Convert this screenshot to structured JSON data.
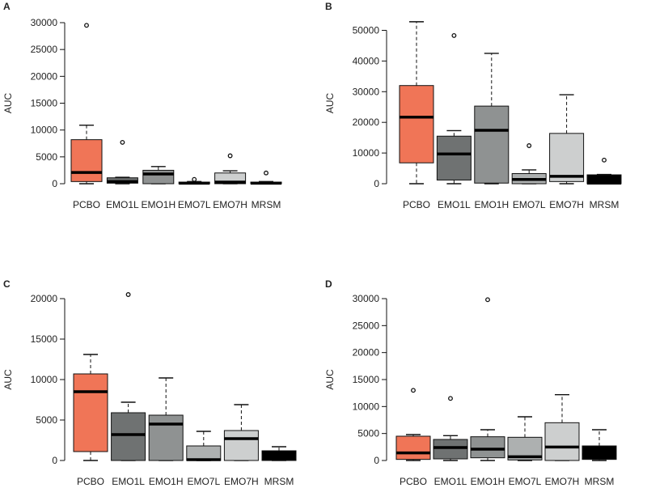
{
  "chart_data": [
    {
      "type": "box",
      "panel": "A",
      "ylabel": "AUC",
      "ylim": [
        0,
        30000
      ],
      "yticks": [
        0,
        5000,
        10000,
        15000,
        20000,
        25000,
        30000
      ],
      "categories": [
        "PCBO",
        "EMO1L",
        "EMO1H",
        "EMO7L",
        "EMO7H",
        "MRSM"
      ],
      "boxes": [
        {
          "whisker_low": 0,
          "q1": 400,
          "median": 2100,
          "q3": 8200,
          "whisker_high": 10900,
          "outliers": [
            29500
          ]
        },
        {
          "whisker_low": 0,
          "q1": 100,
          "median": 400,
          "q3": 1100,
          "whisker_high": 1200,
          "outliers": [
            7700
          ]
        },
        {
          "whisker_low": 0,
          "q1": 0,
          "median": 1800,
          "q3": 2500,
          "whisker_high": 3200,
          "outliers": []
        },
        {
          "whisker_low": 0,
          "q1": 0,
          "median": 100,
          "q3": 300,
          "whisker_high": 400,
          "outliers": [
            800
          ]
        },
        {
          "whisker_low": 0,
          "q1": 0,
          "median": 300,
          "q3": 2000,
          "whisker_high": 2400,
          "outliers": [
            5200
          ]
        },
        {
          "whisker_low": 0,
          "q1": 0,
          "median": 100,
          "q3": 300,
          "whisker_high": 400,
          "outliers": [
            2000
          ]
        }
      ]
    },
    {
      "type": "box",
      "panel": "B",
      "ylabel": "AUC",
      "ylim": [
        0,
        52500
      ],
      "yticks": [
        0,
        10000,
        20000,
        30000,
        40000,
        50000
      ],
      "categories": [
        "PCBO",
        "EMO1L",
        "EMO1H",
        "EMO7L",
        "EMO7H",
        "MRSM"
      ],
      "boxes": [
        {
          "whisker_low": 0,
          "q1": 6800,
          "median": 21700,
          "q3": 32000,
          "whisker_high": 52800,
          "outliers": []
        },
        {
          "whisker_low": 0,
          "q1": 1200,
          "median": 9700,
          "q3": 15500,
          "whisker_high": 17300,
          "outliers": [
            48300
          ]
        },
        {
          "whisker_low": 0,
          "q1": 200,
          "median": 17400,
          "q3": 25300,
          "whisker_high": 42500,
          "outliers": []
        },
        {
          "whisker_low": 0,
          "q1": 0,
          "median": 1400,
          "q3": 3300,
          "whisker_high": 4500,
          "outliers": [
            12400
          ]
        },
        {
          "whisker_low": 0,
          "q1": 700,
          "median": 2400,
          "q3": 16400,
          "whisker_high": 29000,
          "outliers": []
        },
        {
          "whisker_low": 0,
          "q1": 0,
          "median": 200,
          "q3": 2900,
          "whisker_high": 3000,
          "outliers": [
            7700
          ]
        }
      ]
    },
    {
      "type": "box",
      "panel": "C",
      "ylabel": "AUC",
      "ylim": [
        0,
        20000
      ],
      "yticks": [
        0,
        5000,
        10000,
        15000,
        20000
      ],
      "categories": [
        "PCBO",
        "EMO1L",
        "EMO1H",
        "EMO7L",
        "EMO7H",
        "MRSM"
      ],
      "boxes": [
        {
          "whisker_low": 0,
          "q1": 1100,
          "median": 8500,
          "q3": 10700,
          "whisker_high": 13100,
          "outliers": []
        },
        {
          "whisker_low": 0,
          "q1": 0,
          "median": 3200,
          "q3": 5900,
          "whisker_high": 7200,
          "outliers": [
            20500
          ]
        },
        {
          "whisker_low": 0,
          "q1": 0,
          "median": 4500,
          "q3": 5600,
          "whisker_high": 10200,
          "outliers": []
        },
        {
          "whisker_low": 0,
          "q1": 0,
          "median": 100,
          "q3": 1800,
          "whisker_high": 3600,
          "outliers": []
        },
        {
          "whisker_low": 0,
          "q1": 0,
          "median": 2700,
          "q3": 3700,
          "whisker_high": 6900,
          "outliers": []
        },
        {
          "whisker_low": 0,
          "q1": 0,
          "median": 1000,
          "q3": 1200,
          "whisker_high": 1700,
          "outliers": []
        }
      ]
    },
    {
      "type": "box",
      "panel": "D",
      "ylabel": "AUC",
      "ylim": [
        0,
        30000
      ],
      "yticks": [
        0,
        5000,
        10000,
        15000,
        20000,
        25000,
        30000
      ],
      "categories": [
        "PCBO",
        "EMO1L",
        "EMO1H",
        "EMO7L",
        "EMO7H",
        "MRSM"
      ],
      "boxes": [
        {
          "whisker_low": 0,
          "q1": 200,
          "median": 1400,
          "q3": 4500,
          "whisker_high": 4800,
          "outliers": [
            13000
          ]
        },
        {
          "whisker_low": 0,
          "q1": 300,
          "median": 2400,
          "q3": 3900,
          "whisker_high": 4600,
          "outliers": [
            11500
          ]
        },
        {
          "whisker_low": 0,
          "q1": 500,
          "median": 2100,
          "q3": 4400,
          "whisker_high": 5700,
          "outliers": [
            29800
          ]
        },
        {
          "whisker_low": 0,
          "q1": 100,
          "median": 700,
          "q3": 4300,
          "whisker_high": 8100,
          "outliers": []
        },
        {
          "whisker_low": 0,
          "q1": 0,
          "median": 2500,
          "q3": 7000,
          "whisker_high": 12200,
          "outliers": []
        },
        {
          "whisker_low": 0,
          "q1": 200,
          "median": 1100,
          "q3": 2700,
          "whisker_high": 5700,
          "outliers": []
        }
      ]
    }
  ],
  "colors": {
    "PCBO": "#f07557",
    "EMO1L": "#6f7272",
    "EMO1H": "#8f9292",
    "EMO7L": "#adb0b0",
    "EMO7H": "#cdcfcf",
    "MRSM": "#000000",
    "line": "#111111",
    "text": "#222222"
  }
}
